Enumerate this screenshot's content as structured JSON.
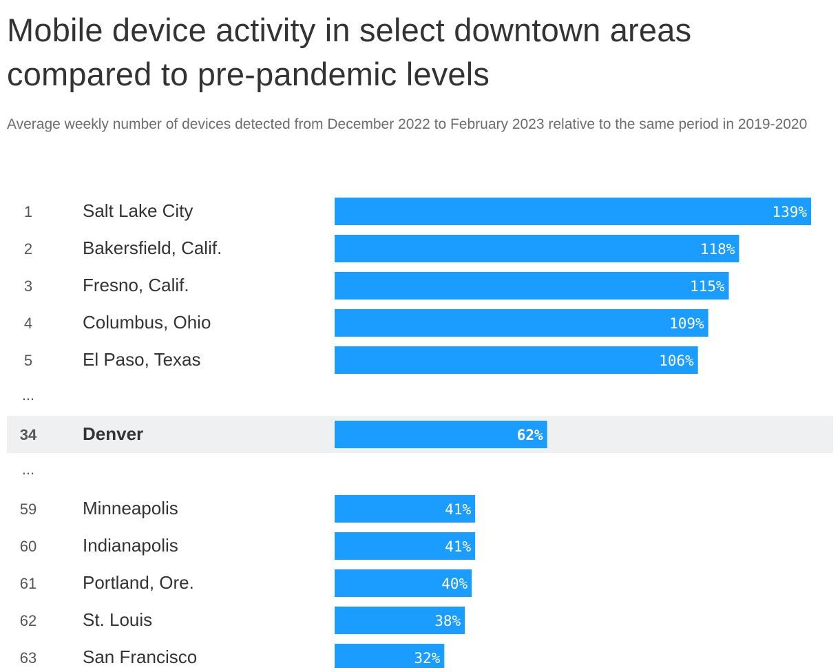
{
  "title": "Mobile device activity in select downtown areas compared to pre-pandemic levels",
  "subtitle": "Average weekly number of devices detected from December 2022 to February 2023 relative to the same period in 2019-2020",
  "colors": {
    "bar": "#1a9dff",
    "highlight_row": "#eff0f2",
    "text": "#333333",
    "muted_text": "#6d6d6d"
  },
  "chart_data": {
    "type": "bar",
    "orientation": "horizontal",
    "title": "Mobile device activity in select downtown areas compared to pre-pandemic levels",
    "subtitle": "Average weekly number of devices detected from December 2022 to February 2023 relative to the same period in 2019-2020",
    "xlim": [
      0,
      139
    ],
    "unit": "%",
    "rows": [
      {
        "rank": "1",
        "city": "Salt Lake City",
        "value": 139,
        "label": "139%"
      },
      {
        "rank": "2",
        "city": "Bakersfield, Calif.",
        "value": 118,
        "label": "118%"
      },
      {
        "rank": "3",
        "city": "Fresno, Calif.",
        "value": 115,
        "label": "115%"
      },
      {
        "rank": "4",
        "city": "Columbus, Ohio",
        "value": 109,
        "label": "109%"
      },
      {
        "rank": "5",
        "city": "El Paso, Texas",
        "value": 106,
        "label": "106%"
      },
      {
        "ellipsis": "..."
      },
      {
        "rank": "34",
        "city": "Denver",
        "value": 62,
        "label": "62%",
        "highlight": true
      },
      {
        "ellipsis": "..."
      },
      {
        "rank": "59",
        "city": "Minneapolis",
        "value": 41,
        "label": "41%"
      },
      {
        "rank": "60",
        "city": "Indianapolis",
        "value": 41,
        "label": "41%"
      },
      {
        "rank": "61",
        "city": "Portland, Ore.",
        "value": 40,
        "label": "40%"
      },
      {
        "rank": "62",
        "city": "St. Louis",
        "value": 38,
        "label": "38%"
      },
      {
        "rank": "63",
        "city": "San Francisco",
        "value": 32,
        "label": "32%"
      }
    ]
  }
}
